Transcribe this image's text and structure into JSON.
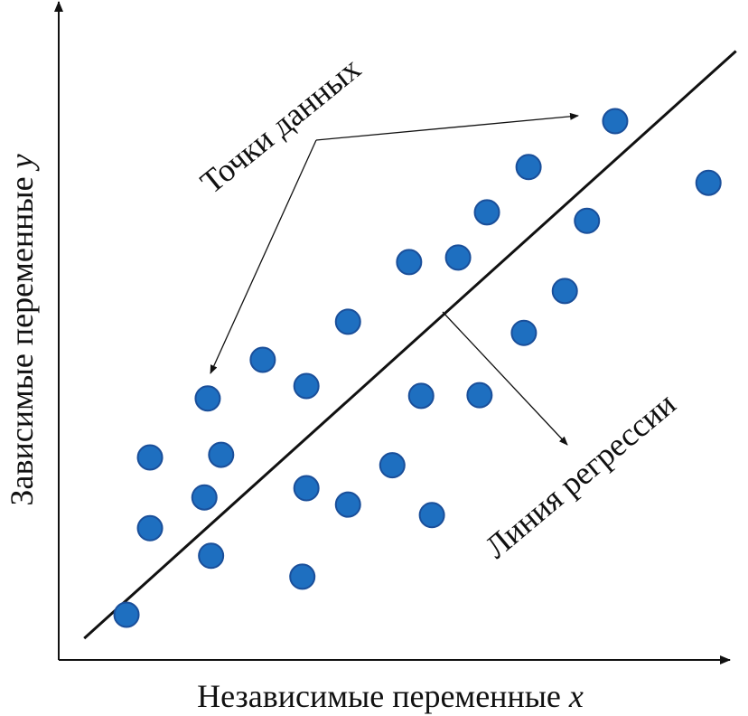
{
  "chart_data": {
    "type": "scatter",
    "title": "",
    "xlabel": "Независимые переменные",
    "xlabel_var": "x",
    "ylabel": "Зависимые переменные",
    "ylabel_var": "y",
    "xlim": [
      0,
      100
    ],
    "ylim": [
      0,
      100
    ],
    "grid": false,
    "ticks": false,
    "point_color": "#1e6fc0",
    "point_edge_color": "#1a4f9a",
    "line_color": "#111111",
    "points": [
      [
        10.1,
        6.9
      ],
      [
        13.6,
        20.1
      ],
      [
        13.6,
        30.9
      ],
      [
        21.7,
        24.8
      ],
      [
        22.7,
        15.9
      ],
      [
        24.2,
        31.3
      ],
      [
        22.2,
        39.9
      ],
      [
        30.4,
        45.8
      ],
      [
        36.9,
        41.8
      ],
      [
        36.9,
        26.2
      ],
      [
        36.3,
        12.7
      ],
      [
        43.1,
        51.6
      ],
      [
        43.1,
        23.7
      ],
      [
        49.7,
        29.7
      ],
      [
        55.6,
        22.1
      ],
      [
        54.0,
        40.3
      ],
      [
        52.2,
        60.7
      ],
      [
        59.5,
        61.4
      ],
      [
        62.7,
        40.4
      ],
      [
        63.8,
        68.3
      ],
      [
        69.3,
        49.9
      ],
      [
        70.0,
        75.2
      ],
      [
        75.4,
        56.3
      ],
      [
        78.7,
        67.0
      ],
      [
        82.9,
        82.2
      ],
      [
        96.8,
        72.8
      ]
    ],
    "regression_line": [
      [
        3.8,
        3.3
      ],
      [
        100.9,
        92.9
      ]
    ],
    "annotations": [
      {
        "text": "Точки данных",
        "targets": "data-points"
      },
      {
        "text": "Линия регрессии",
        "targets": "regression-line"
      }
    ]
  }
}
